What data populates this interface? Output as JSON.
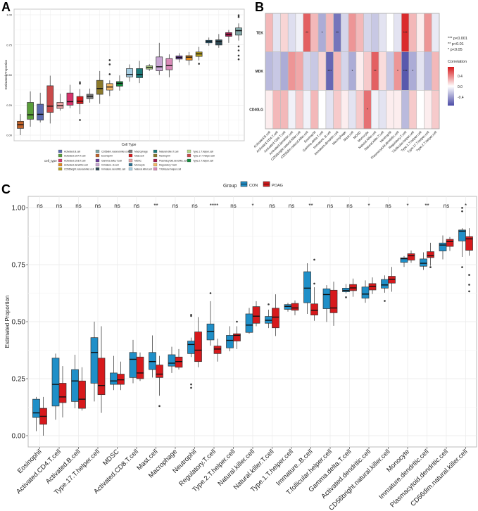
{
  "panels": {
    "a": "A",
    "b": "B",
    "c": "C"
  },
  "colors": {
    "con": "#1f8fc8",
    "poag": "#d7191c",
    "heat_low": "#4b4ba6",
    "heat_mid": "#ffffff",
    "heat_high": "#d7191c"
  },
  "chart_data": [
    {
      "panel": "A",
      "type": "box",
      "xlabel": "Cell Type",
      "ylabel": "Estimated Proportion",
      "ylim": [
        0,
        1
      ],
      "yticks": [
        "0.00",
        "0.25",
        "0.50",
        "0.75",
        "1.00"
      ],
      "grid": true,
      "legend_title": "cell_type",
      "legend_position": "bottom",
      "legend": [
        "Activated.B.cell",
        "Activated.CD4.T.cell",
        "Activated.CD8.T.cell",
        "Activated.dendritic.cell",
        "CD56bright.natural.killer.cell",
        "CD56dim.natural.killer.cell",
        "Eosinophil",
        "Gamma.delta.T.cell",
        "Immature..B.cell",
        "Immature.dendritic.cell",
        "Macrophage",
        "Mast.cell",
        "MDSC",
        "Monocyte",
        "Natural.killer.cell",
        "Natural.killer.T.cell",
        "Neutrophil",
        "Plasmacytoid.dendritic.cell",
        "Regulatory.T.cell",
        "T.follicular.helper.cell",
        "Type.1.T.helper.cell",
        "Type.17.T.helper.cell",
        "Type.2.T.helper.cell"
      ],
      "boxes": [
        {
          "cell": "Eosinophil",
          "color": "#c0622a",
          "lo": 0.0,
          "q1": 0.056,
          "med": 0.086,
          "q3": 0.115,
          "hi": 0.175,
          "out": []
        },
        {
          "cell": "Activated.CD4.T.cell",
          "color": "#5a9e3a",
          "lo": 0.07,
          "q1": 0.132,
          "med": 0.169,
          "q3": 0.272,
          "hi": 0.364,
          "out": []
        },
        {
          "cell": "Activated.B.cell",
          "color": "#5a6aaf",
          "lo": 0.105,
          "q1": 0.125,
          "med": 0.173,
          "q3": 0.257,
          "hi": 0.352,
          "out": []
        },
        {
          "cell": "Type.17.T.helper.cell",
          "color": "#c94a4a",
          "lo": 0.097,
          "q1": 0.189,
          "med": 0.241,
          "q3": 0.41,
          "hi": 0.494,
          "out": []
        },
        {
          "cell": "MDSC",
          "color": "#e8a4a4",
          "lo": 0.204,
          "q1": 0.222,
          "med": 0.245,
          "q3": 0.272,
          "hi": 0.344,
          "out": []
        },
        {
          "cell": "Activated.CD8.T.cell",
          "color": "#d6336b",
          "lo": 0.224,
          "q1": 0.249,
          "med": 0.278,
          "q3": 0.35,
          "hi": 0.418,
          "out": []
        },
        {
          "cell": "Mast.cell",
          "color": "#d7191c",
          "lo": 0.175,
          "q1": 0.261,
          "med": 0.282,
          "q3": 0.321,
          "hi": 0.383,
          "out": [
            0.126,
            0.428,
            0.44
          ]
        },
        {
          "cell": "Macrophage",
          "color": "#7a7a7a",
          "lo": 0.27,
          "q1": 0.303,
          "med": 0.323,
          "q3": 0.34,
          "hi": 0.387,
          "out": []
        },
        {
          "cell": "Neutrophil",
          "color": "#8c7a2a",
          "lo": 0.26,
          "q1": 0.339,
          "med": 0.387,
          "q3": 0.455,
          "hi": 0.533,
          "out": []
        },
        {
          "cell": "Regulatory.T.cell",
          "color": "#f4b866",
          "lo": 0.325,
          "q1": 0.374,
          "med": 0.4,
          "q3": 0.428,
          "hi": 0.455,
          "out": [
            0.506,
            0.588,
            0.623
          ]
        },
        {
          "cell": "Type.2.T.helper.cell",
          "color": "#138a3c",
          "lo": 0.37,
          "q1": 0.407,
          "med": 0.43,
          "q3": 0.445,
          "hi": 0.496,
          "out": []
        },
        {
          "cell": "Natural.killer.cell",
          "color": "#a6cee3",
          "lo": 0.445,
          "q1": 0.484,
          "med": 0.504,
          "q3": 0.553,
          "hi": 0.588,
          "out": []
        },
        {
          "cell": "Natural.killer.T.cell",
          "color": "#1b7a7a",
          "lo": 0.432,
          "q1": 0.477,
          "med": 0.504,
          "q3": 0.553,
          "hi": 0.617,
          "out": []
        },
        {
          "cell": "Type.1.T.helper.cell",
          "color": "#b6d88a",
          "lo": 0.533,
          "q1": 0.549,
          "med": 0.564,
          "q3": 0.576,
          "hi": 0.591,
          "out": []
        },
        {
          "cell": "Immature..B.cell",
          "color": "#c9a6d4",
          "lo": 0.5,
          "q1": 0.535,
          "med": 0.568,
          "q3": 0.65,
          "hi": 0.767,
          "out": []
        },
        {
          "cell": "T.follicular.helper.cell",
          "color": "#d98ab8",
          "lo": 0.481,
          "q1": 0.543,
          "med": 0.578,
          "q3": 0.636,
          "hi": 0.671,
          "out": []
        },
        {
          "cell": "Gamma.delta.T.cell",
          "color": "#6a3d9a",
          "lo": 0.605,
          "q1": 0.632,
          "med": 0.646,
          "q3": 0.658,
          "hi": 0.681,
          "out": []
        },
        {
          "cell": "Activated.dendritic.cell",
          "color": "#e08a1e",
          "lo": 0.582,
          "q1": 0.623,
          "med": 0.648,
          "q3": 0.661,
          "hi": 0.691,
          "out": []
        },
        {
          "cell": "CD56bright.natural.killer.cell",
          "color": "#b8a21e",
          "lo": 0.621,
          "q1": 0.654,
          "med": 0.675,
          "q3": 0.691,
          "hi": 0.733,
          "out": [
            0.593
          ]
        },
        {
          "cell": "Monocyte",
          "color": "#2a6f8f",
          "lo": 0.743,
          "q1": 0.767,
          "med": 0.778,
          "q3": 0.788,
          "hi": 0.811,
          "out": []
        },
        {
          "cell": "Immature.dendritic.cell",
          "color": "#2f4a55",
          "lo": 0.726,
          "q1": 0.749,
          "med": 0.778,
          "q3": 0.792,
          "hi": 0.84,
          "out": []
        },
        {
          "cell": "Plasmacytoid.dendritic.cell",
          "color": "#a3174a",
          "lo": 0.767,
          "q1": 0.821,
          "med": 0.837,
          "q3": 0.852,
          "hi": 0.874,
          "out": []
        },
        {
          "cell": "CD56dim.natural.killer.cell",
          "color": "#7fa5a5",
          "lo": 0.786,
          "q1": 0.831,
          "med": 0.868,
          "q3": 0.891,
          "hi": 0.928,
          "out": [
            0.63,
            0.661,
            0.704,
            0.737,
            0.982,
            0.996
          ]
        }
      ]
    },
    {
      "panel": "B",
      "type": "heatmap",
      "rows": [
        "TEK",
        "MDK",
        "CD40LG"
      ],
      "columns": [
        "Activated.B.cell",
        "Activated.CD4.T.cell",
        "Activated.CD8.T.cell",
        "Activated.dendritic.cell",
        "CD56bright.natural.killer.cell",
        "CD56dim.natural.killer.cell",
        "Eosinophil",
        "Gamma.delta.T.cell",
        "Immature..B.cell",
        "Immature.dendritic.cell",
        "Macrophage",
        "Mast.cell",
        "MDSC",
        "Monocyte",
        "Natural.killer.cell",
        "Natural.killer.T.cell",
        "Neutrophil",
        "Plasmacytoid.dendritic.cell",
        "Regulatory.T.cell",
        "T.follicular.helper.cell",
        "Type.1.T.helper.cell",
        "Type.17.T.helper.cell",
        "Type.2.T.helper.cell"
      ],
      "values": [
        [
          0.2,
          -0.1,
          0.12,
          -0.12,
          -0.05,
          0.45,
          0.2,
          -0.3,
          0.2,
          -0.5,
          -0.15,
          0.3,
          0.2,
          -0.15,
          -0.2,
          -0.1,
          0.0,
          -0.1,
          0.6,
          0.2,
          0.05,
          0.3,
          -0.08
        ],
        [
          -0.25,
          -0.2,
          -0.3,
          0.3,
          0.25,
          -0.15,
          -0.2,
          0.12,
          -0.55,
          0.2,
          -0.15,
          -0.3,
          0.05,
          0.15,
          0.45,
          0.1,
          -0.2,
          0.3,
          -0.6,
          -0.3,
          -0.1,
          -0.25,
          0.2
        ],
        [
          0.05,
          0.2,
          0.2,
          -0.05,
          0.15,
          -0.05,
          0.2,
          0.0,
          -0.1,
          0.15,
          0.05,
          -0.1,
          0.15,
          0.4,
          -0.05,
          -0.1,
          0.05,
          0.05,
          -0.25,
          0.15,
          0.0,
          0.05,
          0.15
        ]
      ],
      "stars": [
        [
          "",
          "",
          "",
          "",
          "",
          "**",
          "",
          "*",
          "",
          "**",
          "",
          "",
          "",
          "",
          "",
          "",
          "",
          "",
          "***",
          "",
          "",
          "",
          ""
        ],
        [
          "",
          "",
          "",
          "",
          "",
          "",
          "",
          "",
          "***",
          "",
          "",
          "*",
          "",
          "",
          "**",
          "",
          "",
          "*",
          "***",
          "*",
          "",
          "",
          ""
        ],
        [
          "",
          "",
          "",
          "",
          "",
          "",
          "",
          "",
          "",
          "",
          "",
          "",
          "",
          "*",
          "",
          "",
          "",
          "",
          "",
          "",
          "",
          "",
          ""
        ]
      ],
      "sig_legend": [
        "***  p<0.001",
        "**  p<0.01",
        "*  p<0.05"
      ],
      "colorbar_title": "Correlation",
      "colorbar_ticks": [
        "0.4",
        "0.0",
        "-0.4"
      ],
      "colorbar_range": [
        -0.7,
        0.7
      ]
    },
    {
      "panel": "C",
      "type": "box",
      "legend_title": "Group",
      "legend_position": "top",
      "groups": [
        "CON",
        "POAG"
      ],
      "ylabel": "Estimated Proportion",
      "ylim": [
        0,
        1
      ],
      "yticks": [
        "0.00",
        "0.25",
        "0.50",
        "0.75",
        "1.00"
      ],
      "grid": true,
      "categories": [
        "Eosinophil",
        "Activated.CD4.T.cell",
        "Activated.B.cell",
        "Type.17.T.helper.cell",
        "MDSC",
        "Activated.CD8.T.cell",
        "Mast.cell",
        "Macrophage",
        "Neutrophil",
        "Regulatory.T.cell",
        "Type.2.T.helper.cell",
        "Natural.killer.cell",
        "Natural.killer.T.cell",
        "Type.1.T.helper.cell",
        "Immature..B.cell",
        "T.follicular.helper.cell",
        "Gamma.delta.T.cell",
        "Activated.dendritic.cell",
        "CD56bright.natural.killer.cell",
        "Monocyte",
        "Immature.dendritic.cell",
        "Plasmacytoid.dendritic.cell",
        "CD56dim.natural.killer.cell"
      ],
      "significance": [
        "ns",
        "ns",
        "ns",
        "ns",
        "ns",
        "ns",
        "**",
        "ns",
        "ns",
        "****",
        "ns",
        "*",
        "ns",
        "ns",
        "**",
        "ns",
        "ns",
        "*",
        "ns",
        "*",
        "**",
        "ns",
        "*"
      ],
      "series": [
        {
          "name": "CON",
          "boxes": [
            [
              0.02,
              0.08,
              0.1,
              0.16,
              0.17,
              []
            ],
            [
              0.07,
              0.13,
              0.225,
              0.34,
              0.36,
              []
            ],
            [
              0.12,
              0.15,
              0.24,
              0.29,
              0.355,
              []
            ],
            [
              0.15,
              0.23,
              0.365,
              0.43,
              0.5,
              []
            ],
            [
              0.2,
              0.225,
              0.24,
              0.275,
              0.35,
              []
            ],
            [
              0.23,
              0.255,
              0.335,
              0.365,
              0.42,
              []
            ],
            [
              0.255,
              0.29,
              0.325,
              0.365,
              0.44,
              []
            ],
            [
              0.275,
              0.305,
              0.318,
              0.355,
              0.39,
              []
            ],
            [
              0.345,
              0.36,
              0.4,
              0.415,
              0.43,
              [
                0.21,
                0.225,
                0.525,
                0.53
              ]
            ],
            [
              0.395,
              0.42,
              0.457,
              0.49,
              0.59,
              [
                0.625
              ]
            ],
            [
              0.37,
              0.385,
              0.418,
              0.44,
              0.48,
              []
            ],
            [
              0.447,
              0.453,
              0.485,
              0.534,
              0.56,
              []
            ],
            [
              0.472,
              0.493,
              0.506,
              0.523,
              0.553,
              [
                0.576
              ]
            ],
            [
              0.544,
              0.554,
              0.567,
              0.575,
              0.583,
              []
            ],
            [
              0.534,
              0.583,
              0.647,
              0.719,
              0.756,
              []
            ],
            [
              0.499,
              0.557,
              0.619,
              0.644,
              0.66,
              []
            ],
            [
              0.624,
              0.631,
              0.637,
              0.647,
              0.665,
              [
                0.607
              ]
            ],
            [
              0.583,
              0.603,
              0.621,
              0.652,
              0.681,
              []
            ],
            [
              0.627,
              0.647,
              0.661,
              0.685,
              0.703,
              [
                0.591
              ]
            ],
            [
              0.74,
              0.76,
              0.776,
              0.78,
              0.788,
              []
            ],
            [
              0.727,
              0.743,
              0.756,
              0.775,
              0.804,
              []
            ],
            [
              0.773,
              0.81,
              0.836,
              0.845,
              0.878,
              []
            ],
            [
              0.784,
              0.854,
              0.897,
              0.902,
              0.91,
              [
                0.739,
                0.984,
                0.999
              ]
            ]
          ]
        },
        {
          "name": "POAG",
          "boxes": [
            [
              0.0,
              0.05,
              0.085,
              0.12,
              0.17,
              []
            ],
            [
              0.08,
              0.145,
              0.17,
              0.23,
              0.305,
              []
            ],
            [
              0.11,
              0.12,
              0.16,
              0.24,
              0.3,
              []
            ],
            [
              0.1,
              0.18,
              0.22,
              0.34,
              0.48,
              []
            ],
            [
              0.2,
              0.225,
              0.245,
              0.27,
              0.325,
              []
            ],
            [
              0.24,
              0.25,
              0.275,
              0.345,
              0.365,
              []
            ],
            [
              0.175,
              0.255,
              0.27,
              0.31,
              0.35,
              [
                0.13
              ]
            ],
            [
              0.29,
              0.3,
              0.325,
              0.345,
              0.38,
              []
            ],
            [
              0.3,
              0.325,
              0.375,
              0.455,
              0.52,
              []
            ],
            [
              0.325,
              0.36,
              0.38,
              0.393,
              0.425,
              []
            ],
            [
              0.38,
              0.415,
              0.44,
              0.447,
              0.48,
              [
                0.5
              ]
            ],
            [
              0.48,
              0.493,
              0.524,
              0.566,
              0.59,
              []
            ],
            [
              0.437,
              0.473,
              0.52,
              0.559,
              0.62,
              []
            ],
            [
              0.528,
              0.55,
              0.56,
              0.58,
              0.593,
              []
            ],
            [
              0.504,
              0.529,
              0.55,
              0.578,
              0.651,
              [
                0.667,
                0.772
              ]
            ],
            [
              0.482,
              0.539,
              0.56,
              0.638,
              0.675,
              []
            ],
            [
              0.609,
              0.636,
              0.648,
              0.663,
              0.689,
              []
            ],
            [
              0.621,
              0.639,
              0.655,
              0.667,
              0.694,
              []
            ],
            [
              0.631,
              0.669,
              0.686,
              0.699,
              0.74,
              []
            ],
            [
              0.758,
              0.77,
              0.789,
              0.798,
              0.812,
              []
            ],
            [
              0.745,
              0.781,
              0.789,
              0.807,
              0.846,
              [
                0.739
              ]
            ],
            [
              0.81,
              0.83,
              0.851,
              0.861,
              0.871,
              []
            ],
            [
              0.789,
              0.813,
              0.863,
              0.873,
              0.91,
              [
                0.633,
                0.662,
                0.705
              ]
            ]
          ]
        }
      ]
    }
  ]
}
